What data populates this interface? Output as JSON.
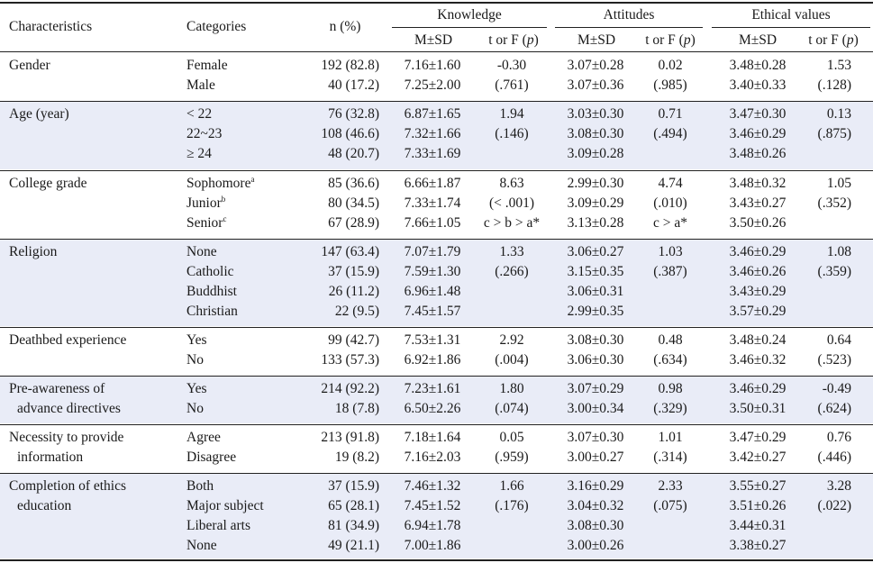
{
  "header": {
    "characteristics": "Characteristics",
    "categories": "Categories",
    "n_pct": "n (%)",
    "groups": [
      "Knowledge",
      "Attitudes",
      "Ethical values"
    ],
    "msd": "M±SD",
    "tf_prefix": "t or F (",
    "tf_p": "p",
    "tf_suffix": ")"
  },
  "groups": [
    {
      "label": [
        "Gender"
      ],
      "rows": [
        {
          "cat": "Female",
          "sup": "",
          "n": "192 (82.8)",
          "k_m": "7.16±1.60",
          "k_t": "-0.30",
          "a_m": "3.07±0.28",
          "a_t": "0.02",
          "e_m": "3.48±0.28",
          "e_t": "1.53"
        },
        {
          "cat": "Male",
          "sup": "",
          "n": "40 (17.2)",
          "k_m": "7.25±2.00",
          "k_t": "(.761)",
          "a_m": "3.07±0.36",
          "a_t": "(.985)",
          "e_m": "3.40±0.33",
          "e_t": "(.128)"
        }
      ]
    },
    {
      "label": [
        "Age (year)"
      ],
      "rows": [
        {
          "cat": "< 22",
          "sup": "",
          "n": "76 (32.8)",
          "k_m": "6.87±1.65",
          "k_t": "1.94",
          "a_m": "3.03±0.30",
          "a_t": "0.71",
          "e_m": "3.47±0.30",
          "e_t": "0.13"
        },
        {
          "cat": "22~23",
          "sup": "",
          "n": "108 (46.6)",
          "k_m": "7.32±1.66",
          "k_t": "(.146)",
          "a_m": "3.08±0.30",
          "a_t": "(.494)",
          "e_m": "3.46±0.29",
          "e_t": "(.875)"
        },
        {
          "cat": "≥ 24",
          "sup": "",
          "n": "48 (20.7)",
          "k_m": "7.33±1.69",
          "k_t": "",
          "a_m": "3.09±0.28",
          "a_t": "",
          "e_m": "3.48±0.26",
          "e_t": ""
        }
      ]
    },
    {
      "label": [
        "College grade"
      ],
      "rows": [
        {
          "cat": "Sophomore",
          "sup": "a",
          "n": "85 (36.6)",
          "k_m": "6.66±1.87",
          "k_t": "8.63",
          "a_m": "2.99±0.30",
          "a_t": "4.74",
          "e_m": "3.48±0.32",
          "e_t": "1.05"
        },
        {
          "cat": "Junior",
          "sup": "b",
          "n": "80 (34.5)",
          "k_m": "7.33±1.74",
          "k_t": "(< .001)",
          "a_m": "3.09±0.29",
          "a_t": "(.010)",
          "e_m": "3.43±0.27",
          "e_t": "(.352)"
        },
        {
          "cat": "Senior",
          "sup": "c",
          "n": "67 (28.9)",
          "k_m": "7.66±1.05",
          "k_t": "c > b > a*",
          "a_m": "3.13±0.28",
          "a_t": "c > a*",
          "e_m": "3.50±0.26",
          "e_t": ""
        }
      ]
    },
    {
      "label": [
        "Religion"
      ],
      "rows": [
        {
          "cat": "None",
          "sup": "",
          "n": "147 (63.4)",
          "k_m": "7.07±1.79",
          "k_t": "1.33",
          "a_m": "3.06±0.27",
          "a_t": "1.03",
          "e_m": "3.46±0.29",
          "e_t": "1.08"
        },
        {
          "cat": "Catholic",
          "sup": "",
          "n": "37 (15.9)",
          "k_m": "7.59±1.30",
          "k_t": "(.266)",
          "a_m": "3.15±0.35",
          "a_t": "(.387)",
          "e_m": "3.46±0.26",
          "e_t": "(.359)"
        },
        {
          "cat": "Buddhist",
          "sup": "",
          "n": "26 (11.2)",
          "k_m": "6.96±1.48",
          "k_t": "",
          "a_m": "3.06±0.31",
          "a_t": "",
          "e_m": "3.43±0.29",
          "e_t": ""
        },
        {
          "cat": "Christian",
          "sup": "",
          "n": "22 (9.5)",
          "k_m": "7.45±1.57",
          "k_t": "",
          "a_m": "2.99±0.35",
          "a_t": "",
          "e_m": "3.57±0.29",
          "e_t": ""
        }
      ]
    },
    {
      "label": [
        "Deathbed experience"
      ],
      "rows": [
        {
          "cat": "Yes",
          "sup": "",
          "n": "99 (42.7)",
          "k_m": "7.53±1.31",
          "k_t": "2.92",
          "a_m": "3.08±0.30",
          "a_t": "0.48",
          "e_m": "3.48±0.24",
          "e_t": "0.64"
        },
        {
          "cat": "No",
          "sup": "",
          "n": "133 (57.3)",
          "k_m": "6.92±1.86",
          "k_t": "(.004)",
          "a_m": "3.06±0.30",
          "a_t": "(.634)",
          "e_m": "3.46±0.32",
          "e_t": "(.523)"
        }
      ]
    },
    {
      "label": [
        "Pre-awareness of",
        "advance directives"
      ],
      "rows": [
        {
          "cat": "Yes",
          "sup": "",
          "n": "214 (92.2)",
          "k_m": "7.23±1.61",
          "k_t": "1.80",
          "a_m": "3.07±0.29",
          "a_t": "0.98",
          "e_m": "3.46±0.29",
          "e_t": "-0.49"
        },
        {
          "cat": "No",
          "sup": "",
          "n": "18 (7.8)",
          "k_m": "6.50±2.26",
          "k_t": "(.074)",
          "a_m": "3.00±0.34",
          "a_t": "(.329)",
          "e_m": "3.50±0.31",
          "e_t": "(.624)"
        }
      ]
    },
    {
      "label": [
        "Necessity to provide",
        "information"
      ],
      "rows": [
        {
          "cat": "Agree",
          "sup": "",
          "n": "213 (91.8)",
          "k_m": "7.18±1.64",
          "k_t": "0.05",
          "a_m": "3.07±0.30",
          "a_t": "1.01",
          "e_m": "3.47±0.29",
          "e_t": "0.76"
        },
        {
          "cat": "Disagree",
          "sup": "",
          "n": "19 (8.2)",
          "k_m": "7.16±2.03",
          "k_t": "(.959)",
          "a_m": "3.00±0.27",
          "a_t": "(.314)",
          "e_m": "3.42±0.27",
          "e_t": "(.446)"
        }
      ]
    },
    {
      "label": [
        "Completion of ethics",
        "education"
      ],
      "rows": [
        {
          "cat": "Both",
          "sup": "",
          "n": "37 (15.9)",
          "k_m": "7.46±1.32",
          "k_t": "1.66",
          "a_m": "3.16±0.29",
          "a_t": "2.33",
          "e_m": "3.55±0.27",
          "e_t": "3.28"
        },
        {
          "cat": "Major subject",
          "sup": "",
          "n": "65 (28.1)",
          "k_m": "7.45±1.52",
          "k_t": "(.176)",
          "a_m": "3.04±0.32",
          "a_t": "(.075)",
          "e_m": "3.51±0.26",
          "e_t": "(.022)"
        },
        {
          "cat": "Liberal arts",
          "sup": "",
          "n": "81 (34.9)",
          "k_m": "6.94±1.78",
          "k_t": "",
          "a_m": "3.08±0.30",
          "a_t": "",
          "e_m": "3.44±0.31",
          "e_t": ""
        },
        {
          "cat": "None",
          "sup": "",
          "n": "49 (21.1)",
          "k_m": "7.00±1.86",
          "k_t": "",
          "a_m": "3.00±0.26",
          "a_t": "",
          "e_m": "3.38±0.27",
          "e_t": ""
        }
      ]
    }
  ],
  "colors": {
    "band": "#e9ecf7",
    "rule": "#222222",
    "text": "#1a1a1a"
  }
}
